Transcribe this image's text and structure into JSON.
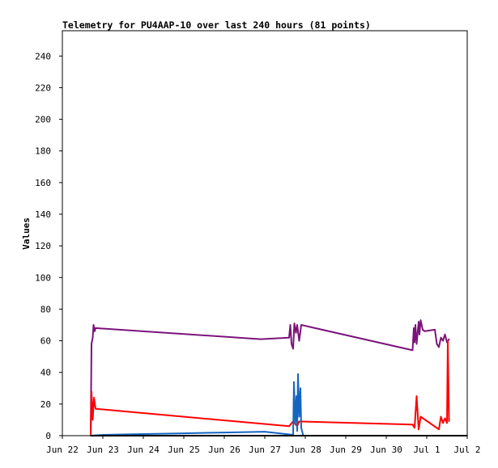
{
  "chart_data": {
    "type": "line",
    "title": "Telemetry for PU4AAP-10 over last 240 hours (81 points)",
    "xlabel": "",
    "ylabel": "Values",
    "ylim": [
      0,
      256
    ],
    "yticks": [
      0,
      20,
      40,
      60,
      80,
      100,
      120,
      140,
      160,
      180,
      200,
      220,
      240
    ],
    "xlim": [
      0,
      10
    ],
    "xticks": [
      0,
      1,
      2,
      3,
      4,
      5,
      6,
      7,
      8,
      9,
      10
    ],
    "xtick_labels": [
      "Jun 22",
      "Jun 23",
      "Jun 24",
      "Jun 25",
      "Jun 26",
      "Jun 27",
      "Jun 28",
      "Jun 29",
      "Jun 30",
      "Jul 1",
      "Jul 2"
    ],
    "x_unit": "days since Jun 22 00:00",
    "grid": false,
    "series": [
      {
        "color": "#7b137b",
        "x": [
          0.7,
          0.72,
          0.75,
          0.77,
          0.8,
          0.82,
          4.9,
          5.6,
          5.63,
          5.66,
          5.7,
          5.73,
          5.77,
          5.8,
          5.85,
          5.9,
          8.65,
          8.68,
          8.7,
          8.72,
          8.75,
          8.8,
          8.82,
          8.85,
          8.9,
          8.95,
          9.2,
          9.25,
          9.3,
          9.35,
          9.4,
          9.45,
          9.5,
          9.55
        ],
        "y": [
          0,
          58,
          62,
          70,
          66,
          68,
          61,
          62,
          70,
          58,
          55,
          71,
          65,
          70,
          60,
          70,
          54,
          68,
          59,
          70,
          58,
          72,
          64,
          73,
          67,
          66,
          67,
          58,
          56,
          62,
          60,
          64,
          59,
          61
        ]
      },
      {
        "color": "#ff0000",
        "x": [
          0.7,
          0.72,
          0.75,
          0.78,
          0.82,
          5.6,
          5.7,
          5.8,
          5.85,
          8.65,
          8.7,
          8.75,
          8.8,
          8.85,
          9.3,
          9.35,
          9.4,
          9.45,
          9.5,
          9.52,
          9.55
        ],
        "y": [
          0,
          28,
          10,
          24,
          17,
          6,
          9,
          6,
          9,
          7,
          5,
          25,
          4,
          12,
          4,
          12,
          8,
          11,
          8,
          60,
          9
        ]
      },
      {
        "color": "#1565c0",
        "x": [
          0.7,
          1.0,
          2.0,
          3.0,
          4.0,
          5.0,
          5.7,
          5.72,
          5.75,
          5.78,
          5.8,
          5.82,
          5.85,
          5.88,
          5.9,
          5.95
        ],
        "y": [
          0,
          0.5,
          1,
          1.5,
          2,
          2.5,
          0.5,
          34,
          8,
          25,
          3,
          39,
          12,
          30,
          5,
          0
        ]
      },
      {
        "color": "#000000",
        "x": [
          0.7,
          10
        ],
        "y": [
          0,
          0
        ]
      }
    ]
  }
}
